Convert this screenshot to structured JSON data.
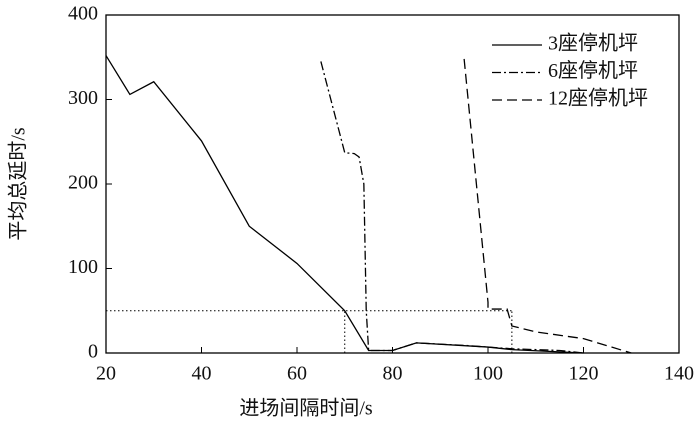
{
  "chart_data": {
    "type": "line",
    "x_label": "进场间隔时间/s",
    "y_label": "平均总延时/s",
    "xlim": [
      20,
      140
    ],
    "xticks": [
      20,
      40,
      60,
      80,
      100,
      120,
      140
    ],
    "ylim": [
      0,
      400
    ],
    "yticks": [
      0,
      100,
      200,
      300,
      400
    ],
    "legend": "upper right",
    "series": [
      {
        "name": "3座停机坪",
        "color": "#000000",
        "dash": "solid",
        "x": [
          20,
          25,
          30,
          40,
          50,
          60,
          70,
          75,
          80,
          85,
          100,
          105,
          120
        ],
        "values": [
          352,
          306,
          321,
          251,
          150,
          106,
          50,
          3,
          3,
          12,
          7,
          4,
          0
        ]
      },
      {
        "name": "6座停机坪",
        "color": "#000000",
        "dash": "dashdot",
        "x": [
          65,
          70,
          72,
          73,
          74,
          74.5,
          75,
          80,
          85,
          95,
          105,
          115,
          120
        ],
        "values": [
          345,
          237,
          236,
          232,
          200,
          50,
          3,
          3,
          12,
          9,
          5,
          3,
          0
        ]
      },
      {
        "name": "12座停机坪",
        "color": "#000000",
        "dash": "dashed",
        "x": [
          95,
          100,
          100,
          104,
          105,
          110,
          120,
          130
        ],
        "values": [
          348,
          60,
          52,
          52,
          32,
          25,
          17,
          0
        ]
      }
    ],
    "reference": {
      "y": 50,
      "x": [
        70,
        105
      ]
    }
  }
}
